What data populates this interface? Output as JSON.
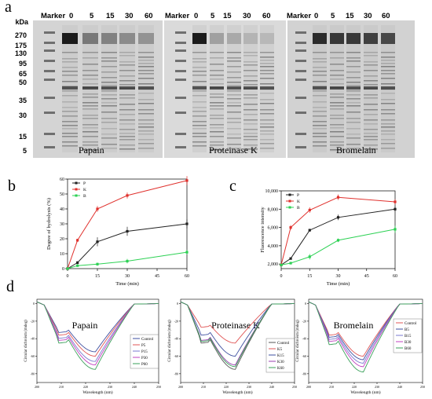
{
  "panel_a": {
    "letter": "a",
    "kda_label": "kDa",
    "marker_sizes": [
      "270",
      "175",
      "130",
      "95",
      "65",
      "50",
      "35",
      "30",
      "15",
      "5"
    ],
    "gels": [
      {
        "marker": "Marker",
        "lanes": [
          "0",
          "5",
          "15",
          "30",
          "60"
        ],
        "enzyme": "Papain"
      },
      {
        "marker": "Marker",
        "lanes": [
          "0",
          "5",
          "15",
          "30",
          "60"
        ],
        "enzyme": "Proteinase K"
      },
      {
        "marker": "Marker",
        "lanes": [
          "0",
          "5",
          "15",
          "30",
          "60"
        ],
        "enzyme": "Bromelain"
      }
    ]
  },
  "chart_data": [
    {
      "panel": "b",
      "type": "line",
      "xlabel": "Time (min)",
      "ylabel": "Degree of hydrolysis (%)",
      "x": [
        0,
        5,
        15,
        30,
        60
      ],
      "xticks": [
        0,
        15,
        30,
        45,
        60
      ],
      "yticks": [
        0,
        10,
        20,
        30,
        40,
        50,
        60
      ],
      "xlim": [
        0,
        60
      ],
      "ylim": [
        0,
        60
      ],
      "legend": "top-left",
      "series": [
        {
          "name": "P",
          "color": "#222222",
          "values": [
            0,
            4,
            18,
            25,
            30
          ],
          "errors": [
            0,
            1,
            3,
            3,
            3
          ]
        },
        {
          "name": "K",
          "color": "#e0312d",
          "values": [
            0,
            19,
            40,
            49,
            59
          ],
          "errors": [
            0,
            1,
            2,
            2,
            3
          ]
        },
        {
          "name": "B",
          "color": "#2dd154",
          "values": [
            0,
            2,
            3,
            5,
            11
          ],
          "errors": [
            0,
            0.5,
            1,
            1.5,
            1.5
          ]
        }
      ]
    },
    {
      "panel": "c",
      "type": "line",
      "xlabel": "Time (min)",
      "ylabel": "Fluorescence intensity",
      "x": [
        0,
        5,
        15,
        30,
        60
      ],
      "xticks": [
        0,
        15,
        30,
        45,
        60
      ],
      "yticks": [
        2000,
        4000,
        6000,
        8000,
        10000
      ],
      "ytick_labels": [
        "2,000",
        "4,000",
        "6,000",
        "8,000",
        "10,000"
      ],
      "xlim": [
        0,
        60
      ],
      "ylim": [
        1500,
        10000
      ],
      "legend": "top-left",
      "series": [
        {
          "name": "P",
          "color": "#222222",
          "values": [
            1900,
            2600,
            5700,
            7100,
            8000
          ],
          "errors": [
            0,
            100,
            150,
            300,
            250
          ]
        },
        {
          "name": "K",
          "color": "#e0312d",
          "values": [
            1900,
            6000,
            7900,
            9300,
            8800
          ],
          "errors": [
            0,
            250,
            300,
            300,
            300
          ]
        },
        {
          "name": "B",
          "color": "#2dd154",
          "values": [
            1900,
            2100,
            2800,
            4600,
            5800
          ],
          "errors": [
            0,
            100,
            300,
            200,
            400
          ]
        }
      ]
    },
    {
      "panel": "d",
      "type": "line",
      "title": "Papain",
      "xlabel": "Wavelength (nm)",
      "ylabel": "Circular dichroism (mdeg)",
      "xticks": [
        200,
        210,
        220,
        230,
        240,
        250
      ],
      "yticks": [
        0,
        -20,
        -40,
        -60,
        -80
      ],
      "xlim": [
        200,
        250
      ],
      "ylim": [
        -90,
        5
      ],
      "legend": "right",
      "series": [
        {
          "name": "Control",
          "color": "#3e4fa0",
          "depth": -55
        },
        {
          "name": "P5",
          "color": "#e05555",
          "depth": -60
        },
        {
          "name": "P15",
          "color": "#7a7ad0",
          "depth": -66
        },
        {
          "name": "P30",
          "color": "#c040c0",
          "depth": -70
        },
        {
          "name": "P60",
          "color": "#3aa05a",
          "depth": -75
        }
      ]
    },
    {
      "panel": "d",
      "type": "line",
      "title": "Proteinase K",
      "xlabel": "Wavelength (nm)",
      "ylabel": "Circular dichroism (mdeg)",
      "xticks": [
        200,
        210,
        220,
        230,
        240,
        250
      ],
      "yticks": [
        0,
        -20,
        -40,
        -60,
        -80
      ],
      "xlim": [
        200,
        250
      ],
      "ylim": [
        -90,
        5
      ],
      "legend": "right",
      "series": [
        {
          "name": "Control",
          "color": "#555555",
          "depth": -75
        },
        {
          "name": "K5",
          "color": "#e05555",
          "depth": -45
        },
        {
          "name": "K15",
          "color": "#3e4fa0",
          "depth": -60
        },
        {
          "name": "K30",
          "color": "#9a40b0",
          "depth": -70
        },
        {
          "name": "K60",
          "color": "#3aa05a",
          "depth": -72
        }
      ]
    },
    {
      "panel": "d",
      "type": "line",
      "title": "Bromelain",
      "xlabel": "Wavelength (nm)",
      "ylabel": "Circular dichroism (mdeg)",
      "xticks": [
        200,
        210,
        220,
        230,
        240,
        250
      ],
      "yticks": [
        0,
        -20,
        -40,
        -60,
        -80
      ],
      "xlim": [
        200,
        250
      ],
      "ylim": [
        -90,
        5
      ],
      "legend": "top-right",
      "series": [
        {
          "name": "Control",
          "color": "#e05555",
          "depth": -60
        },
        {
          "name": "B5",
          "color": "#3e4fa0",
          "depth": -64
        },
        {
          "name": "B15",
          "color": "#7a7ad0",
          "depth": -68
        },
        {
          "name": "B30",
          "color": "#c040c0",
          "depth": -72
        },
        {
          "name": "B60",
          "color": "#3aa05a",
          "depth": -78
        }
      ]
    }
  ]
}
